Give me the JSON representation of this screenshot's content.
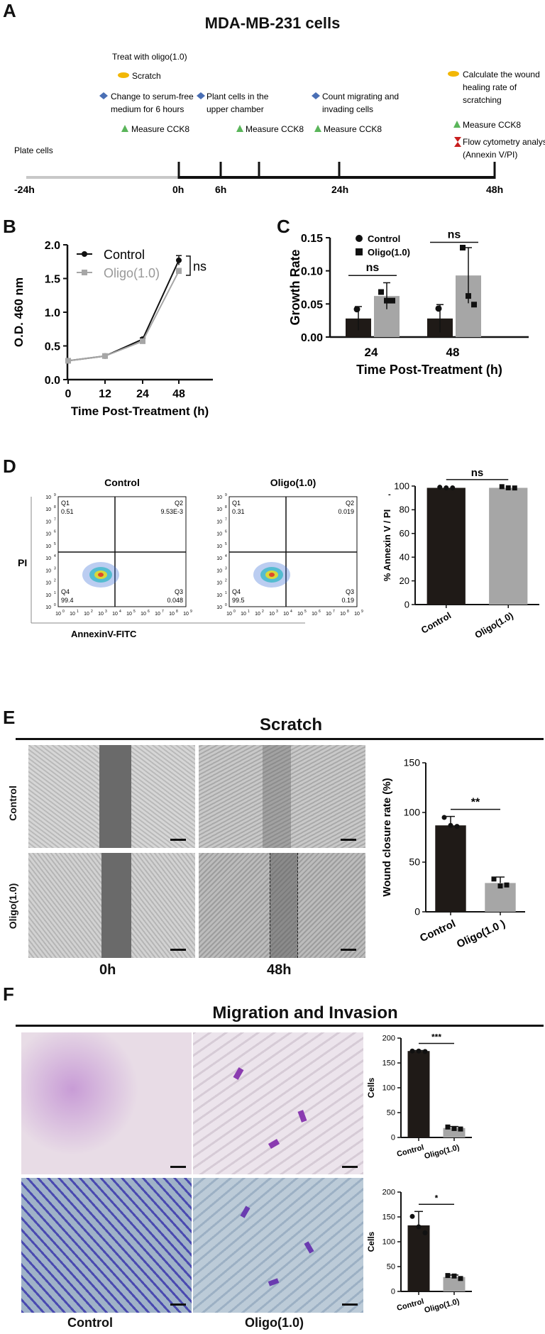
{
  "panel_labels": {
    "a": "A",
    "b": "B",
    "c": "C",
    "d": "D",
    "e": "E",
    "f": "F"
  },
  "panelA": {
    "title": "MDA-MB-231 cells",
    "timeline": {
      "ticks": [
        "-24h",
        "0h",
        "6h",
        "24h",
        "48h"
      ],
      "plate_cells": "Plate cells",
      "treat": "Treat with oligo(1.0)",
      "scratch": "Scratch",
      "serum_free": [
        "Change to serum-free",
        "medium for 6 hours"
      ],
      "measure_cck8": "Measure CCK8",
      "plant_cells": [
        "Plant cells in the",
        "upper chamber"
      ],
      "count_cells": [
        "Count migrating and",
        "invading cells"
      ],
      "wound_rate": [
        "Calculate the wound",
        "healing rate of",
        "scratching"
      ],
      "flow": [
        "Flow cytometry analysis",
        "(Annexin V/PI)"
      ],
      "colors": {
        "yellow": "#f2b705",
        "blue": "#4a6fb5",
        "green": "#5ab55a",
        "red": "#c81e1e",
        "grey_line": "#c8c8c8"
      }
    }
  },
  "panelD": {
    "control_title": "Control",
    "oligo_title": "Oligo(1.0)",
    "q_labels": [
      "Q1",
      "Q2",
      "Q3",
      "Q4"
    ],
    "control_values": {
      "q1": "0.51",
      "q2": "9.53E-3",
      "q3": "0.048",
      "q4": "99.4"
    },
    "oligo_values": {
      "q1": "0.31",
      "q2": "0.019",
      "q3": "0.19",
      "q4": "99.5"
    },
    "y_axis": "PI",
    "x_axis": "AnnexinV-FITC",
    "tick_base": "10",
    "tick_exps": [
      "0",
      "1",
      "2",
      "3",
      "4",
      "5",
      "6",
      "7",
      "8",
      "9"
    ]
  },
  "panelE": {
    "title": "Scratch",
    "row_labels": [
      "Control",
      "Oligo(1.0)"
    ],
    "col_labels": [
      "0h",
      "48h"
    ]
  },
  "panelF": {
    "title": "Migration and Invasion",
    "col_labels": [
      "Control",
      "Oligo(1.0)"
    ]
  },
  "chart_data": [
    {
      "id": "B",
      "type": "line",
      "x": [
        0,
        12,
        24,
        48
      ],
      "series": [
        {
          "name": "Control",
          "values": [
            0.28,
            0.35,
            0.6,
            1.77
          ],
          "errors": [
            0.01,
            0.01,
            0.02,
            0.07
          ],
          "color": "#111111",
          "marker": "circle"
        },
        {
          "name": "Oligo(1.0)",
          "values": [
            0.28,
            0.35,
            0.57,
            1.61
          ],
          "errors": [
            0.01,
            0.01,
            0.02,
            0.04
          ],
          "color": "#a6a6a6",
          "marker": "square"
        }
      ],
      "xlabel": "Time Post-Treatment (h)",
      "ylabel": "O.D. 460 nm",
      "xticks": [
        "0",
        "12",
        "24",
        "48"
      ],
      "yticks": [
        "0.0",
        "0.5",
        "1.0",
        "1.5",
        "2.0"
      ],
      "ylim": [
        0,
        2.0
      ],
      "annotations": [
        "ns"
      ]
    },
    {
      "id": "C",
      "type": "bar",
      "categories": [
        "24",
        "48"
      ],
      "series": [
        {
          "name": "Control",
          "values": [
            0.028,
            0.028
          ],
          "errors": [
            0.018,
            0.021
          ],
          "color": "#1f1a17",
          "points": [
            [
              0.042
            ],
            [
              0.043
            ]
          ]
        },
        {
          "name": "Oligo(1.0)",
          "values": [
            0.062,
            0.093
          ],
          "errors": [
            0.02,
            0.042
          ],
          "color": "#a6a6a6",
          "points": [
            [
              0.068,
              0.055,
              0.055
            ],
            [
              0.135,
              0.062,
              0.049
            ]
          ]
        }
      ],
      "xlabel": "Time Post-Treatment (h)",
      "ylabel": "Growth Rate",
      "yticks": [
        "0.00",
        "0.05",
        "0.10",
        "0.15"
      ],
      "ylim": [
        0,
        0.15
      ],
      "annotations": [
        "ns",
        "ns"
      ]
    },
    {
      "id": "D",
      "type": "bar",
      "categories": [
        "Control",
        "Oligo(1.0)"
      ],
      "values": [
        98.5,
        98.5
      ],
      "colors": [
        "#1f1a17",
        "#a6a6a6"
      ],
      "points": [
        [
          99,
          98.5,
          98.5
        ],
        [
          99.5,
          98.5,
          98.4
        ]
      ],
      "ylabel": "% Annexin V",
      "ylabel_suffix": "/ PI",
      "ylabel_sup": "-",
      "yticks": [
        "0",
        "20",
        "40",
        "60",
        "80",
        "100"
      ],
      "ylim": [
        0,
        100
      ],
      "annotations": [
        "ns"
      ]
    },
    {
      "id": "E",
      "type": "bar",
      "categories": [
        "Control",
        "Oligo(1.0 )"
      ],
      "values": [
        87,
        29
      ],
      "errors": [
        9,
        6
      ],
      "colors": [
        "#1f1a17",
        "#a6a6a6"
      ],
      "points": [
        [
          95,
          87,
          86
        ],
        [
          33,
          26,
          27
        ]
      ],
      "ylabel": "Wound closure rate (%)",
      "yticks": [
        "0",
        "50",
        "100",
        "150"
      ],
      "ylim": [
        0,
        150
      ],
      "annotations": [
        "**"
      ]
    },
    {
      "id": "F1",
      "type": "bar",
      "categories": [
        "Control",
        "Oligo(1.0)"
      ],
      "values": [
        174,
        19
      ],
      "errors": [
        1,
        3
      ],
      "colors": [
        "#1f1a17",
        "#a6a6a6"
      ],
      "points": [
        [
          174,
          174,
          173
        ],
        [
          21,
          18,
          17
        ]
      ],
      "ylabel": "Cells",
      "yticks": [
        "0",
        "50",
        "100",
        "150",
        "200"
      ],
      "ylim": [
        0,
        200
      ],
      "annotations": [
        "***"
      ]
    },
    {
      "id": "F2",
      "type": "bar",
      "categories": [
        "Control",
        "Oligo(1.0)"
      ],
      "values": [
        133,
        29
      ],
      "errors": [
        28,
        4
      ],
      "colors": [
        "#1f1a17",
        "#a6a6a6"
      ],
      "points": [
        [
          151,
          130,
          118
        ],
        [
          32,
          31,
          26
        ]
      ],
      "ylabel": "Cells",
      "yticks": [
        "0",
        "50",
        "100",
        "150",
        "200"
      ],
      "ylim": [
        0,
        200
      ],
      "annotations": [
        "*"
      ]
    }
  ]
}
